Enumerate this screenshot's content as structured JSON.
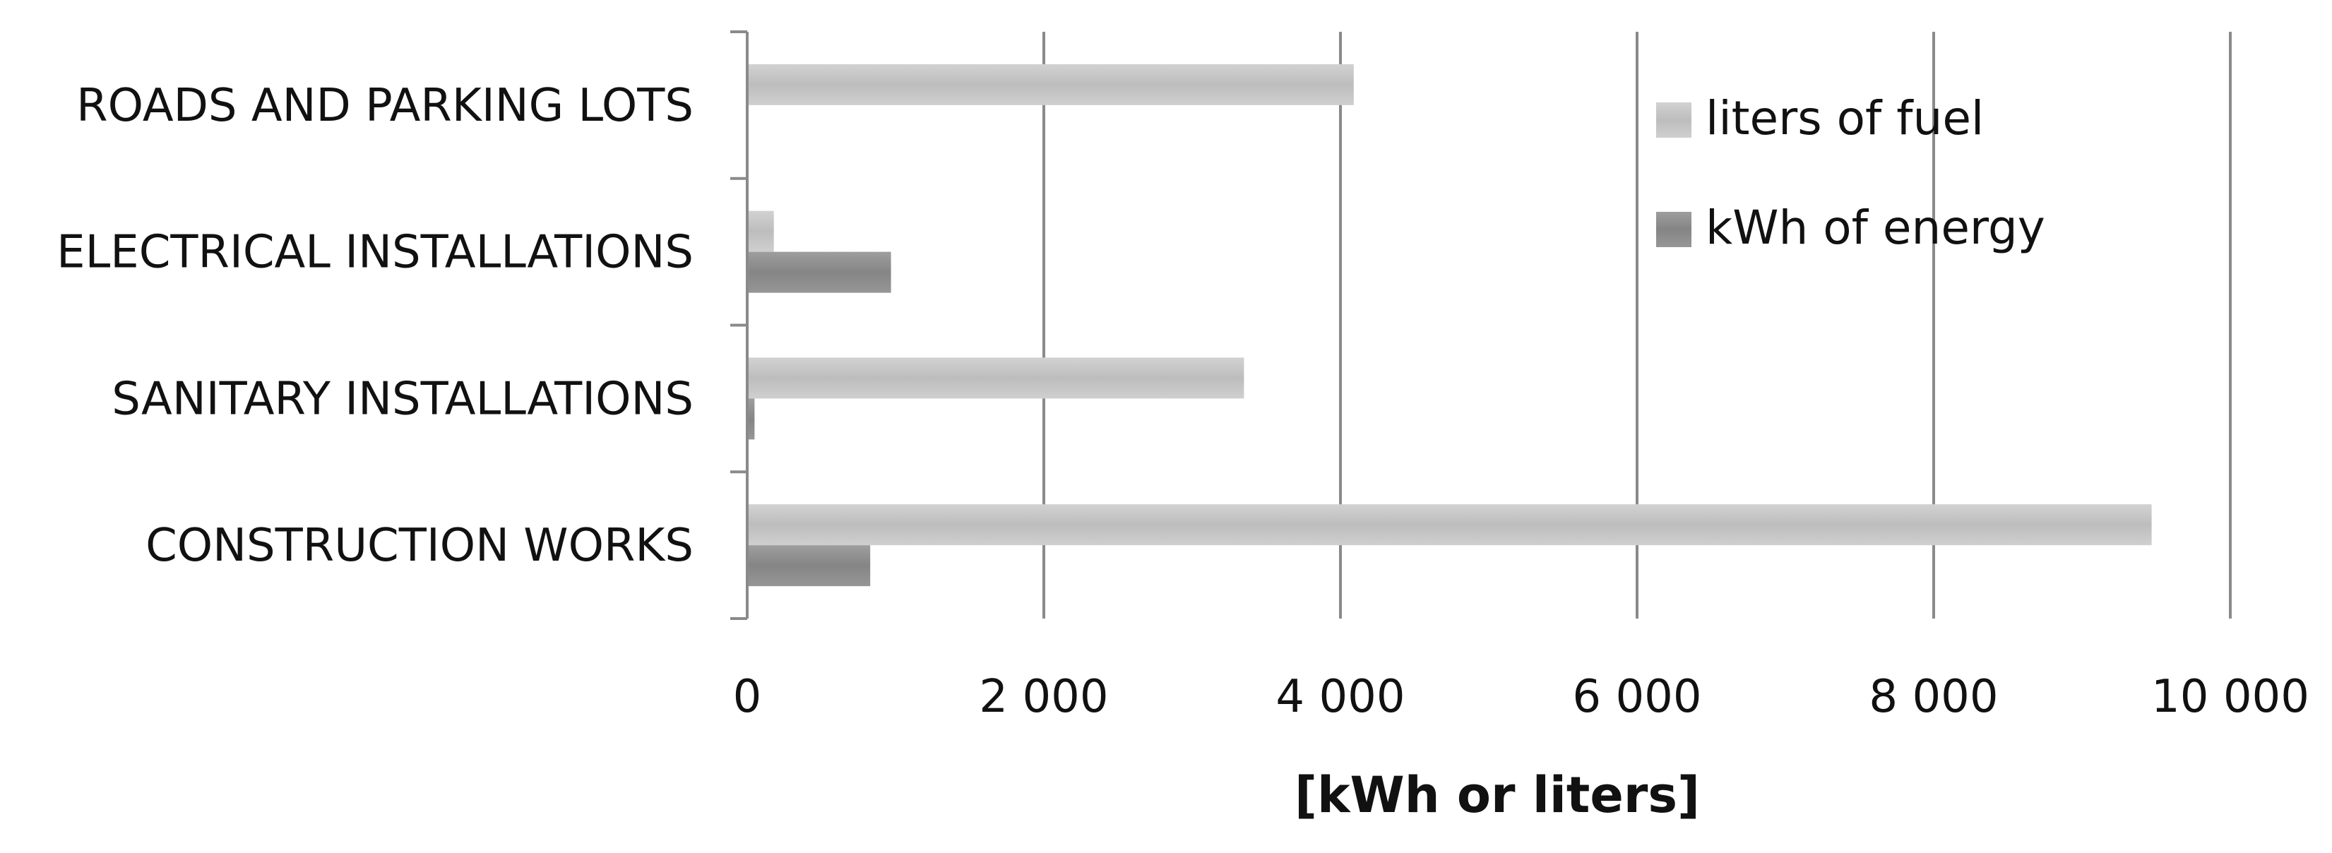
{
  "chart_data": {
    "type": "bar",
    "orientation": "horizontal",
    "categories": [
      "ROADS AND PARKING LOTS",
      "ELECTRICAL INSTALLATIONS",
      "SANITARY INSTALLATIONS",
      "CONSTRUCTION WORKS"
    ],
    "series": [
      {
        "name": "liters of fuel",
        "values": [
          4080,
          170,
          3340,
          9460
        ],
        "color": "#c4c4c4"
      },
      {
        "name": "kWh of energy",
        "values": [
          0,
          960,
          40,
          820
        ],
        "color": "#8f8f8f"
      }
    ],
    "title": "",
    "xlabel": "[kWh or liters]",
    "ylabel": "",
    "xlim": [
      0,
      10000
    ],
    "xticks": [
      0,
      2000,
      4000,
      6000,
      8000,
      10000
    ],
    "xtick_labels": [
      "0",
      "2 000",
      "4 000",
      "6 000",
      "8 000",
      "10 000"
    ],
    "grid": "vertical",
    "legend_position": "top-right",
    "colors": {
      "gridline": "#8a8a8a",
      "axis": "#8a8a8a"
    }
  }
}
